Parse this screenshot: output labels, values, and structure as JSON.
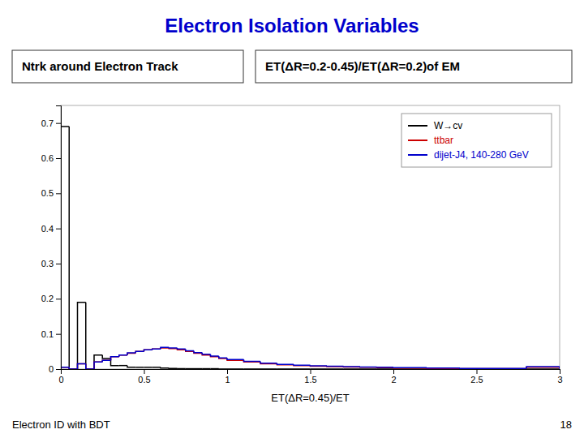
{
  "chart_data": {
    "type": "histogram",
    "title": "Electron Isolation Variables",
    "x_label": "ET(ΔR=0.45)/ET",
    "annotations": [
      "Ntrk around Electron Track",
      "ET(ΔR=0.2-0.45)/ET(ΔR=0.2)of EM",
      "Electron ID with BDT",
      "18"
    ],
    "bins": [
      0,
      0.05,
      0.1,
      0.15,
      0.2,
      0.25,
      0.3,
      0.35,
      0.4,
      0.45,
      0.5,
      0.55,
      0.6,
      0.65,
      0.7,
      0.75,
      0.8,
      0.85,
      0.9,
      0.95,
      1.0,
      1.1,
      1.2,
      1.3,
      1.4,
      1.5,
      1.6,
      1.7,
      1.8,
      1.9,
      2.0,
      2.2,
      2.4,
      2.6,
      2.8,
      3.0
    ],
    "series": [
      {
        "name": "W→cv",
        "color": "#000000",
        "values": [
          0.69,
          0.0,
          0.19,
          0.0,
          0.04,
          0.03,
          0.01,
          0.01,
          0.005,
          0.005,
          0.005,
          0.005,
          0.003,
          0.002,
          0.001,
          0.001,
          0.001,
          0.001,
          0.001,
          0.0,
          0.0,
          0.0,
          0.0,
          0.0,
          0.0,
          0.0,
          0.0,
          0.0,
          0.0,
          0.0,
          0.0,
          0.0,
          0.0,
          0.0,
          0.0
        ]
      },
      {
        "name": "ttbar",
        "color": "#cc0000",
        "values": [
          0.005,
          0.0,
          0.015,
          0.0,
          0.02,
          0.025,
          0.035,
          0.04,
          0.045,
          0.05,
          0.055,
          0.057,
          0.06,
          0.058,
          0.055,
          0.05,
          0.045,
          0.04,
          0.035,
          0.03,
          0.025,
          0.02,
          0.015,
          0.012,
          0.01,
          0.008,
          0.007,
          0.006,
          0.005,
          0.004,
          0.003,
          0.002,
          0.001,
          0.001,
          0.005
        ]
      },
      {
        "name": "dijet-J4, 140-280 GeV",
        "color": "#0000cc",
        "values": [
          0.005,
          0.0,
          0.015,
          0.0,
          0.02,
          0.025,
          0.035,
          0.04,
          0.046,
          0.05,
          0.055,
          0.057,
          0.062,
          0.06,
          0.057,
          0.052,
          0.047,
          0.042,
          0.037,
          0.032,
          0.027,
          0.022,
          0.017,
          0.013,
          0.011,
          0.009,
          0.008,
          0.007,
          0.006,
          0.005,
          0.004,
          0.003,
          0.002,
          0.002,
          0.007
        ]
      }
    ],
    "xlim": [
      0,
      3
    ],
    "ylim": [
      0,
      0.75
    ],
    "xticks": [
      0,
      0.5,
      1,
      1.5,
      2,
      2.5,
      3
    ],
    "yticks": [
      0,
      0.1,
      0.2,
      0.3,
      0.4,
      0.5,
      0.6,
      0.7
    ],
    "legend": "upper right",
    "grid": false
  }
}
